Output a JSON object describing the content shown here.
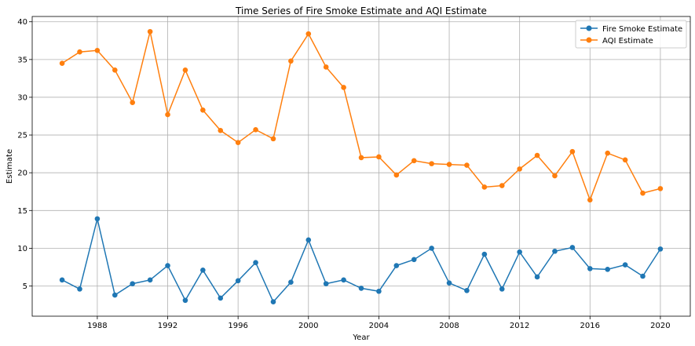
{
  "chart_data": {
    "type": "line",
    "title": "Time Series of Fire Smoke Estimate and AQI Estimate",
    "xlabel": "Year",
    "ylabel": "Estimate",
    "xlim": [
      1984.3,
      2021.7
    ],
    "ylim": [
      1.0,
      40.7
    ],
    "xticks": [
      1988,
      1992,
      1996,
      2000,
      2004,
      2008,
      2012,
      2016,
      2020
    ],
    "yticks": [
      5,
      10,
      15,
      20,
      25,
      30,
      35,
      40
    ],
    "grid": true,
    "legend_position": "top-right",
    "x": [
      1986,
      1987,
      1988,
      1989,
      1990,
      1991,
      1992,
      1993,
      1994,
      1995,
      1996,
      1997,
      1998,
      1999,
      2000,
      2001,
      2002,
      2003,
      2004,
      2005,
      2006,
      2007,
      2008,
      2009,
      2010,
      2011,
      2012,
      2013,
      2014,
      2015,
      2016,
      2017,
      2018,
      2019,
      2020
    ],
    "series": [
      {
        "name": "Fire Smoke Estimate",
        "color": "#1f77b4",
        "marker": "circle",
        "values": [
          5.8,
          4.6,
          13.9,
          3.8,
          5.3,
          5.8,
          7.7,
          3.1,
          7.1,
          3.4,
          5.7,
          8.1,
          2.9,
          5.5,
          11.1,
          5.3,
          5.8,
          4.7,
          4.3,
          7.7,
          8.5,
          10.0,
          5.4,
          4.4,
          9.2,
          4.6,
          9.5,
          6.2,
          9.6,
          10.1,
          7.3,
          7.2,
          7.8,
          6.3,
          9.9
        ]
      },
      {
        "name": "AQI Estimate",
        "color": "#ff7f0e",
        "marker": "circle",
        "values": [
          34.5,
          36.0,
          36.2,
          33.6,
          29.3,
          38.7,
          27.7,
          33.6,
          28.3,
          25.6,
          24.0,
          25.7,
          24.5,
          34.8,
          38.4,
          34.0,
          31.3,
          22.0,
          22.1,
          19.7,
          21.6,
          21.2,
          21.1,
          21.0,
          18.1,
          18.3,
          20.5,
          22.3,
          19.6,
          22.8,
          16.4,
          22.6,
          21.7,
          17.3,
          17.9
        ]
      }
    ]
  }
}
